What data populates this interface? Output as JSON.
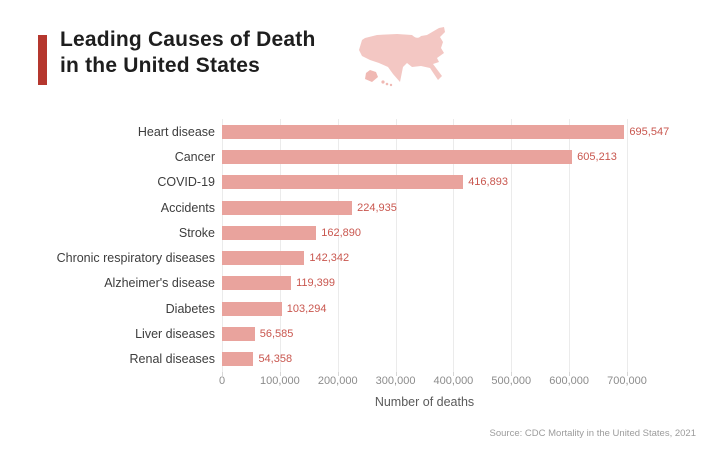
{
  "header": {
    "title_line1": "Leading Causes of Death",
    "title_line2": "in the United States",
    "map_icon": "usa-map-icon"
  },
  "chart_data": {
    "type": "bar",
    "orientation": "horizontal",
    "title": "Leading Causes of Death in the United States",
    "categories": [
      "Heart disease",
      "Cancer",
      "COVID-19",
      "Accidents",
      "Stroke",
      "Chronic respiratory diseases",
      "Alzheimer's disease",
      "Diabetes",
      "Liver diseases",
      "Renal diseases"
    ],
    "values": [
      695547,
      605213,
      416893,
      224935,
      162890,
      142342,
      119399,
      103294,
      56585,
      54358
    ],
    "value_labels": [
      "695,547",
      "605,213",
      "416,893",
      "224,935",
      "162,890",
      "142,342",
      "119,399",
      "103,294",
      "56,585",
      "54,358"
    ],
    "xlabel": "Number of deaths",
    "ylabel": "",
    "xlim": [
      0,
      700000
    ],
    "grid": true,
    "legend": "none",
    "x_ticks": [
      {
        "value": 0,
        "label": "0"
      },
      {
        "value": 100000,
        "label": "100,000"
      },
      {
        "value": 200000,
        "label": "200,000"
      },
      {
        "value": 300000,
        "label": "300,000"
      },
      {
        "value": 400000,
        "label": "400,000"
      },
      {
        "value": 500000,
        "label": "500,000"
      },
      {
        "value": 600000,
        "label": "600,000"
      },
      {
        "value": 700000,
        "label": "700,000"
      }
    ]
  },
  "colors": {
    "accent_red": "#b5372e",
    "bar_fill": "#e9a39d",
    "value_label": "#c9574f",
    "map_fill": "#f3c7c3",
    "gridline": "#ebebeb",
    "title_text": "#1e1e1e",
    "category_text": "#3d3d3d",
    "tick_text": "#8c8c8c"
  },
  "footer": {
    "source": "Source: CDC Mortality in the United States, 2021"
  }
}
